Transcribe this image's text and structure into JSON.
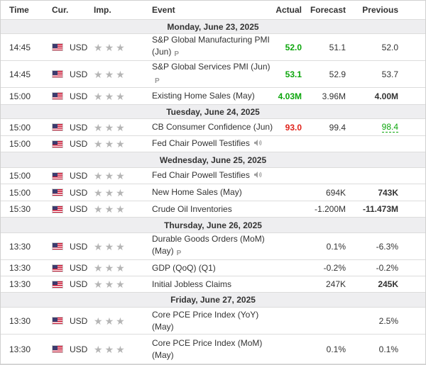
{
  "columns": {
    "time": "Time",
    "currency": "Cur.",
    "importance": "Imp.",
    "event": "Event",
    "actual": "Actual",
    "forecast": "Forecast",
    "previous": "Previous"
  },
  "colors": {
    "positive": "#0ca60c",
    "negative": "#e0231b",
    "star": "#b5b5b5",
    "day_bg": "#eeeef0"
  },
  "days": [
    {
      "label": "Monday, June 23, 2025",
      "events": [
        {
          "time": "14:45",
          "currency": "USD",
          "importance": 3,
          "name": "S&P Global Manufacturing PMI (Jun)",
          "tag": "P",
          "actual": "52.0",
          "actual_color": "green",
          "forecast": "51.1",
          "previous": "52.0"
        },
        {
          "time": "14:45",
          "currency": "USD",
          "importance": 3,
          "name": "S&P Global Services PMI (Jun)",
          "tag": "P",
          "actual": "53.1",
          "actual_color": "green",
          "forecast": "52.9",
          "previous": "53.7"
        },
        {
          "time": "15:00",
          "currency": "USD",
          "importance": 3,
          "name": "Existing Home Sales (May)",
          "actual": "4.03M",
          "actual_color": "green",
          "forecast": "3.96M",
          "previous": "4.00M"
        }
      ]
    },
    {
      "label": "Tuesday, June 24, 2025",
      "events": [
        {
          "time": "15:00",
          "currency": "USD",
          "importance": 3,
          "name": "CB Consumer Confidence (Jun)",
          "actual": "93.0",
          "actual_color": "red",
          "forecast": "99.4",
          "previous": "98.4",
          "previous_color": "green"
        },
        {
          "time": "15:00",
          "currency": "USD",
          "importance": 3,
          "name": "Fed Chair Powell Testifies",
          "speech": true,
          "actual": "",
          "forecast": "",
          "previous": ""
        }
      ]
    },
    {
      "label": "Wednesday, June 25, 2025",
      "events": [
        {
          "time": "15:00",
          "currency": "USD",
          "importance": 3,
          "name": "Fed Chair Powell Testifies",
          "speech": true,
          "actual": "",
          "forecast": "",
          "previous": ""
        },
        {
          "time": "15:00",
          "currency": "USD",
          "importance": 3,
          "name": "New Home Sales (May)",
          "actual": "",
          "forecast": "694K",
          "previous": "743K"
        },
        {
          "time": "15:30",
          "currency": "USD",
          "importance": 3,
          "name": "Crude Oil Inventories",
          "actual": "",
          "forecast": "-1.200M",
          "previous": "-11.473M"
        }
      ]
    },
    {
      "label": "Thursday, June 26, 2025",
      "events": [
        {
          "time": "13:30",
          "currency": "USD",
          "importance": 3,
          "name": "Durable Goods Orders (MoM) (May)",
          "tag": "P",
          "actual": "",
          "forecast": "0.1%",
          "previous": "-6.3%"
        },
        {
          "time": "13:30",
          "currency": "USD",
          "importance": 3,
          "name": "GDP (QoQ) (Q1)",
          "actual": "",
          "forecast": "-0.2%",
          "previous": "-0.2%"
        },
        {
          "time": "13:30",
          "currency": "USD",
          "importance": 3,
          "name": "Initial Jobless Claims",
          "actual": "",
          "forecast": "247K",
          "previous": "245K"
        }
      ]
    },
    {
      "label": "Friday, June 27, 2025",
      "events": [
        {
          "time": "13:30",
          "currency": "USD",
          "importance": 3,
          "name": "Core PCE Price Index (YoY) (May)",
          "actual": "",
          "forecast": "",
          "previous": "2.5%"
        },
        {
          "time": "13:30",
          "currency": "USD",
          "importance": 3,
          "name": "Core PCE Price Index (MoM) (May)",
          "actual": "",
          "forecast": "0.1%",
          "previous": "0.1%"
        }
      ]
    }
  ]
}
